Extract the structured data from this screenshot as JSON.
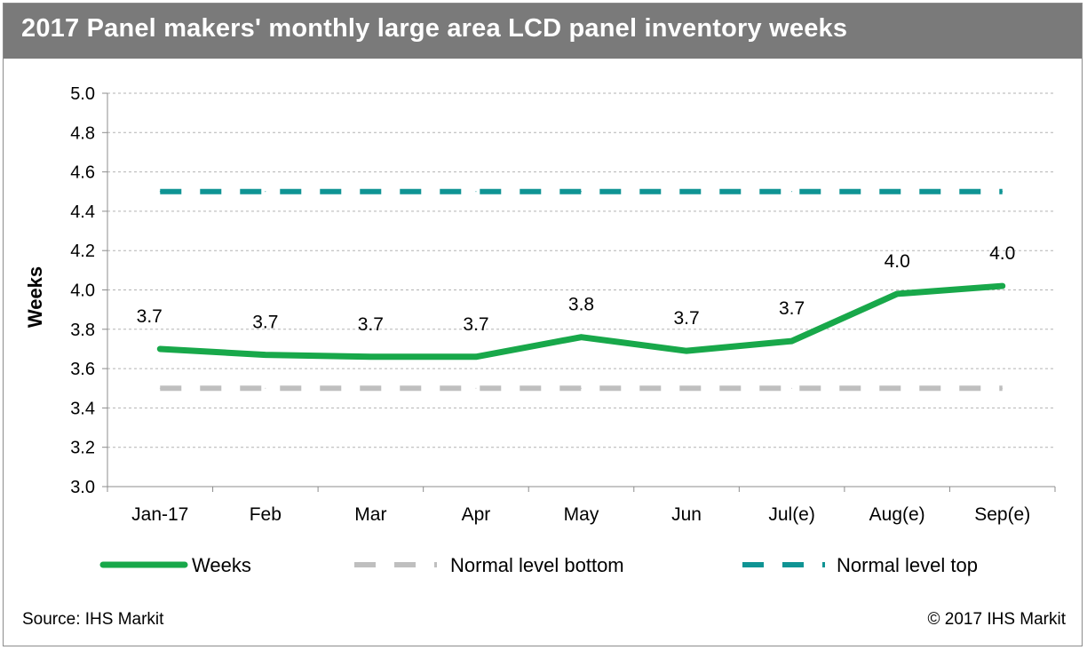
{
  "title": "2017 Panel makers' monthly large area LCD panel inventory weeks",
  "footer": {
    "source": "Source: IHS Markit",
    "copyright": "© 2017 IHS Markit"
  },
  "chart_data": {
    "type": "line",
    "title": "2017 Panel makers' monthly large area LCD panel inventory weeks",
    "xlabel": "",
    "ylabel": "Weeks",
    "ylim": [
      3.0,
      5.0
    ],
    "yticks": [
      "3.0",
      "3.2",
      "3.4",
      "3.6",
      "3.8",
      "4.0",
      "4.2",
      "4.4",
      "4.6",
      "4.8",
      "5.0"
    ],
    "grid": true,
    "legend_position": "bottom",
    "categories": [
      "Jan-17",
      "Feb",
      "Mar",
      "Apr",
      "May",
      "Jun",
      "Jul(e)",
      "Aug(e)",
      "Sep(e)"
    ],
    "series": [
      {
        "name": "Weeks",
        "values": [
          3.7,
          3.67,
          3.66,
          3.66,
          3.76,
          3.69,
          3.74,
          3.98,
          4.02
        ],
        "data_labels": [
          "3.7",
          "3.7",
          "3.7",
          "3.7",
          "3.8",
          "3.7",
          "3.7",
          "4.0",
          "4.0"
        ],
        "color": "#18a84a",
        "style": "solid"
      },
      {
        "name": "Normal level bottom",
        "values": [
          3.5,
          3.5,
          3.5,
          3.5,
          3.5,
          3.5,
          3.5,
          3.5,
          3.5
        ],
        "color": "#bfbfbf",
        "style": "dashed"
      },
      {
        "name": "Normal level top",
        "values": [
          4.5,
          4.5,
          4.5,
          4.5,
          4.5,
          4.5,
          4.5,
          4.5,
          4.5
        ],
        "color": "#0f9494",
        "style": "dashed"
      }
    ]
  }
}
